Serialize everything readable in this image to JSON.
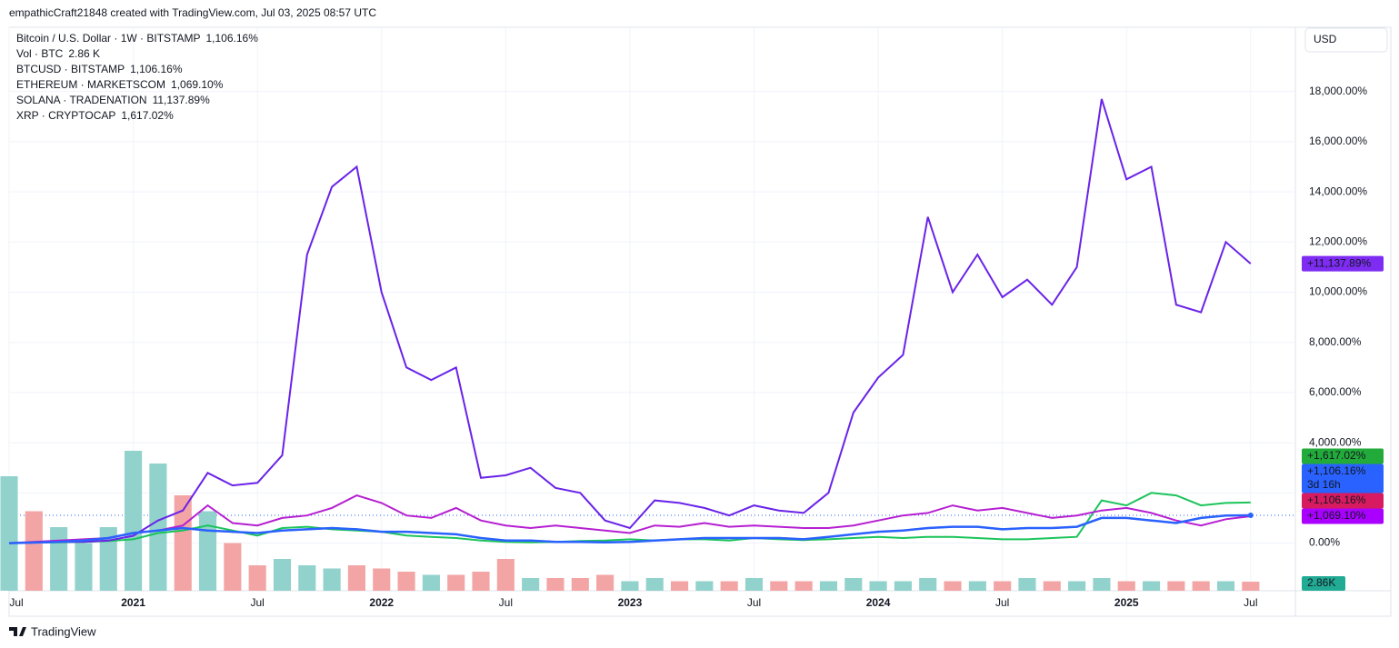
{
  "header": "empathicCraft21848 created with TradingView.com, Jul 03, 2025 08:57 UTC",
  "footer": "TradingView",
  "currency": "USD",
  "chart_data": [
    {
      "type": "line",
      "x": [
        2020.5,
        2020.6,
        2020.7,
        2020.8,
        2020.9,
        2021.0,
        2021.1,
        2021.2,
        2021.3,
        2021.4,
        2021.5,
        2021.6,
        2021.7,
        2021.8,
        2021.9,
        2022.0,
        2022.1,
        2022.2,
        2022.3,
        2022.4,
        2022.5,
        2022.6,
        2022.7,
        2022.8,
        2022.9,
        2023.0,
        2023.1,
        2023.2,
        2023.3,
        2023.4,
        2023.5,
        2023.6,
        2023.7,
        2023.8,
        2023.9,
        2024.0,
        2024.1,
        2024.2,
        2024.3,
        2024.4,
        2024.5,
        2024.6,
        2024.7,
        2024.8,
        2024.9,
        2025.0,
        2025.1,
        2025.2,
        2025.3,
        2025.4,
        2025.5
      ],
      "xlim": [
        2020.5,
        2025.68
      ],
      "xticks": [
        {
          "value": 2020.5,
          "label": "Jul"
        },
        2021,
        {
          "value": 2021.5,
          "label": "Jul"
        },
        2022,
        {
          "value": 2022.5,
          "label": "Jul"
        },
        2023,
        {
          "value": 2023.5,
          "label": "Jul"
        },
        2024,
        {
          "value": 2024.5,
          "label": "Jul"
        },
        2025,
        {
          "value": 2025.5,
          "label": "Jul"
        }
      ],
      "ylim": [
        -1900,
        20560
      ],
      "yticks": [
        {
          "value": 0,
          "label": "0.00%"
        },
        {
          "value": 2000,
          "label": "2,000.00%"
        },
        {
          "value": 4000,
          "label": "4,000.00%"
        },
        {
          "value": 6000,
          "label": "6,000.00%"
        },
        {
          "value": 8000,
          "label": "8,000.00%"
        },
        {
          "value": 10000,
          "label": "10,000.00%"
        },
        {
          "value": 12000,
          "label": "12,000.00%"
        },
        {
          "value": 14000,
          "label": "14,000.00%"
        },
        {
          "value": 16000,
          "label": "16,000.00%"
        },
        {
          "value": 18000,
          "label": "18,000.00%"
        }
      ],
      "grid": true,
      "series": [
        {
          "name": "Bitcoin / U.S. Dollar · 1W · BITSTAMP",
          "color": "#2962ff",
          "label_color": "#2962ff",
          "legend_label": "1,106.16%",
          "end_label": "+1,106.16%",
          "countdown": "3d 16h",
          "values": [
            0,
            20,
            50,
            100,
            200,
            400,
            500,
            600,
            500,
            450,
            400,
            500,
            550,
            600,
            550,
            450,
            450,
            400,
            350,
            200,
            100,
            100,
            50,
            50,
            30,
            50,
            100,
            150,
            200,
            200,
            200,
            200,
            150,
            250,
            350,
            450,
            500,
            600,
            650,
            650,
            550,
            600,
            600,
            650,
            1000,
            1000,
            900,
            800,
            1000,
            1100,
            1106.16
          ]
        },
        {
          "name": "BTCUSD · BITSTAMP",
          "color": "#c2185b",
          "label_color": "#d81b60",
          "legend_label": "1,106.16%",
          "end_label": "+1,106.16%",
          "values": [
            0,
            20,
            50,
            100,
            200,
            400,
            500,
            600,
            500,
            450,
            400,
            500,
            550,
            600,
            550,
            450,
            450,
            400,
            350,
            200,
            100,
            100,
            50,
            50,
            30,
            50,
            100,
            150,
            200,
            200,
            200,
            200,
            150,
            250,
            350,
            450,
            500,
            600,
            650,
            650,
            550,
            600,
            600,
            650,
            1000,
            1000,
            900,
            800,
            1000,
            1100,
            1106.16
          ]
        },
        {
          "name": "ETHEREUM · MARKETSCOM",
          "color": "#b61fd1",
          "label_color": "#aa00ff",
          "legend_label": "1,069.10%",
          "end_label": "+1,069.10%",
          "values": [
            0,
            50,
            100,
            150,
            200,
            400,
            500,
            700,
            1500,
            800,
            700,
            1000,
            1100,
            1400,
            1900,
            1600,
            1100,
            1000,
            1400,
            900,
            700,
            600,
            700,
            600,
            500,
            400,
            700,
            650,
            800,
            650,
            700,
            650,
            600,
            600,
            700,
            900,
            1100,
            1200,
            1500,
            1300,
            1400,
            1200,
            1000,
            1100,
            1300,
            1400,
            1200,
            900,
            700,
            950,
            1069.1
          ]
        },
        {
          "name": "SOLANA · TRADENATION",
          "color": "#6a23e8",
          "label_color": "#7e2cf2",
          "legend_label": "11,137.89%",
          "end_label": "+11,137.89%",
          "values": [
            0,
            20,
            50,
            50,
            100,
            290,
            900,
            1300,
            2800,
            2300,
            2400,
            3500,
            11500,
            14200,
            15000,
            10000,
            7000,
            6500,
            7000,
            2600,
            2700,
            3000,
            2200,
            2000,
            900,
            600,
            1700,
            1600,
            1400,
            1100,
            1500,
            1300,
            1200,
            2000,
            5200,
            6600,
            7500,
            13000,
            10000,
            11500,
            9800,
            10500,
            9500,
            11000,
            17700,
            14500,
            15000,
            9500,
            9200,
            12000,
            11137.89
          ]
        },
        {
          "name": "XRP · CRYPTOCAP",
          "color": "#1bc45a",
          "label_color": "#22ab3a",
          "legend_label": "1,617.02%",
          "end_label": "+1,617.02%",
          "values": [
            0,
            20,
            30,
            50,
            80,
            150,
            400,
            500,
            700,
            500,
            300,
            600,
            650,
            550,
            500,
            450,
            300,
            250,
            200,
            100,
            50,
            30,
            50,
            80,
            100,
            150,
            100,
            150,
            150,
            100,
            200,
            150,
            120,
            150,
            200,
            250,
            200,
            250,
            250,
            200,
            150,
            150,
            200,
            250,
            1700,
            1500,
            2000,
            1900,
            1500,
            1600,
            1617.02
          ]
        }
      ]
    },
    {
      "type": "bar",
      "name": "Vol · BTC",
      "value_label": "2.86 K",
      "end_label": "2.86K",
      "label_color": "#22ab94",
      "ylim": [
        0,
        50
      ],
      "values": [
        36,
        25,
        20,
        15,
        20,
        44,
        40,
        30,
        25,
        15,
        8,
        10,
        8,
        7,
        8,
        7,
        6,
        5,
        5,
        6,
        10,
        4,
        4,
        4,
        5,
        3,
        4,
        3,
        3,
        3,
        4,
        3,
        3,
        3,
        4,
        3,
        3,
        4,
        3,
        3,
        3,
        4,
        3,
        3,
        4,
        3,
        3,
        3,
        3,
        3,
        2.86
      ],
      "colors": [
        "#92d2cc",
        "#f3a5a5",
        "#92d2cc",
        "#92d2cc",
        "#92d2cc",
        "#92d2cc",
        "#92d2cc",
        "#f3a5a5",
        "#92d2cc",
        "#f3a5a5",
        "#f3a5a5",
        "#92d2cc",
        "#92d2cc",
        "#92d2cc",
        "#f3a5a5",
        "#f3a5a5",
        "#f3a5a5",
        "#92d2cc",
        "#f3a5a5",
        "#f3a5a5",
        "#f3a5a5",
        "#92d2cc",
        "#f3a5a5",
        "#f3a5a5",
        "#f3a5a5",
        "#92d2cc",
        "#92d2cc",
        "#f3a5a5",
        "#92d2cc",
        "#f3a5a5",
        "#92d2cc",
        "#f3a5a5",
        "#f3a5a5",
        "#92d2cc",
        "#92d2cc",
        "#92d2cc",
        "#92d2cc",
        "#92d2cc",
        "#f3a5a5",
        "#92d2cc",
        "#f3a5a5",
        "#92d2cc",
        "#f3a5a5",
        "#92d2cc",
        "#92d2cc",
        "#f3a5a5",
        "#92d2cc",
        "#f3a5a5",
        "#f3a5a5",
        "#92d2cc",
        "#f3a5a5"
      ]
    }
  ]
}
